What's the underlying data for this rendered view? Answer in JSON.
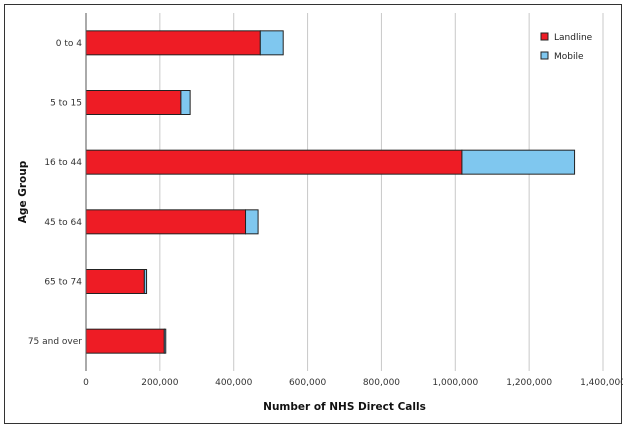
{
  "chart_data": {
    "type": "bar",
    "orientation": "horizontal",
    "stacked": true,
    "title": "",
    "xlabel": "Number of NHS Direct Calls",
    "ylabel": "Age Group",
    "categories": [
      "0 to 4",
      "5 to 15",
      "16 to 44",
      "45 to 64",
      "65 to 74",
      "75 and over"
    ],
    "series": [
      {
        "name": "Landline",
        "color": "#ee1c25",
        "values": [
          472000,
          257000,
          1018000,
          432000,
          158000,
          212000
        ]
      },
      {
        "name": "Mobile",
        "color": "#7fc7ef",
        "values": [
          62000,
          25000,
          305000,
          34000,
          6000,
          4000
        ]
      }
    ],
    "xlim": [
      0,
      1400000
    ],
    "xticks": [
      0,
      200000,
      400000,
      600000,
      800000,
      1000000,
      1200000,
      1400000
    ],
    "xtick_labels": [
      "0",
      "200,000",
      "400,000",
      "600,000",
      "800,000",
      "1,000,000",
      "1,200,000",
      "1,400,000"
    ],
    "grid": "vertical",
    "legend_position": "top-right"
  }
}
